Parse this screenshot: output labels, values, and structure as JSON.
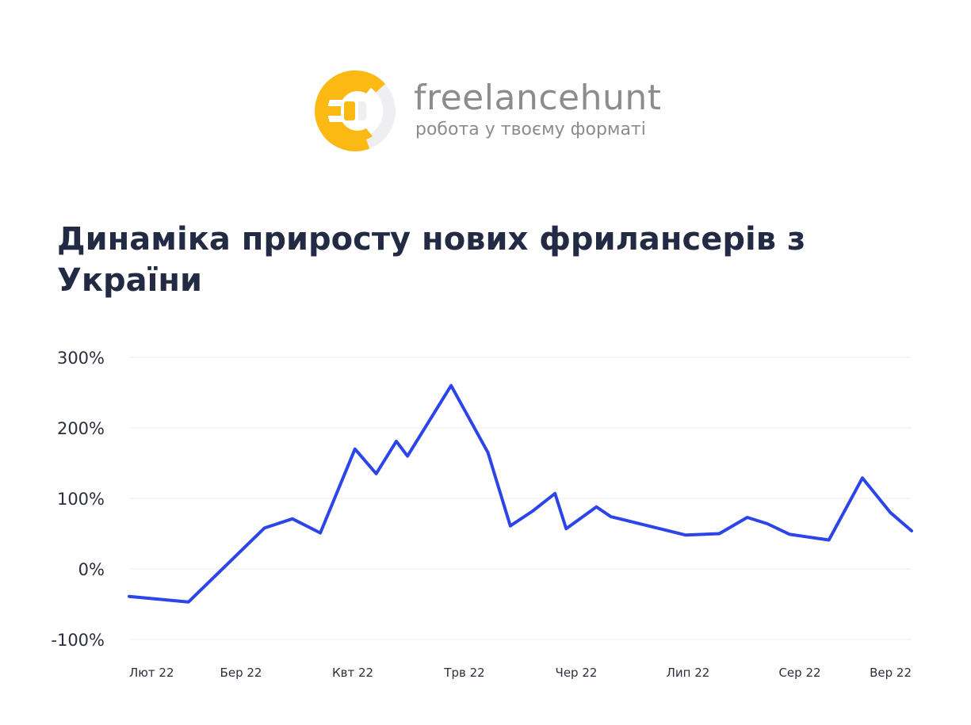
{
  "logo": {
    "name": "freelancehunt",
    "tagline": "робота у твоєму форматі",
    "colors": {
      "primary": "#FDB913",
      "secondary": "#EFEFF1",
      "text": "#8C8C8F"
    }
  },
  "chart_data": {
    "type": "line",
    "title": "Динаміка приросту нових фрилансерів з України",
    "xlabel": "",
    "ylabel": "",
    "ylim": [
      -100,
      300
    ],
    "yticks": [
      300,
      200,
      100,
      0,
      -100
    ],
    "ytick_labels": [
      "300%",
      "200%",
      "100%",
      "0%",
      "-100%"
    ],
    "xticks": [
      "Лют 22",
      "Бер 22",
      "Квт 22",
      "Трв 22",
      "Чер 22",
      "Лип 22",
      "Сер 22",
      "Вер 22"
    ],
    "x_range": [
      0,
      7
    ],
    "grid": true,
    "legend": "none",
    "series": [
      {
        "color": "#2B45E8",
        "points": [
          [
            0.0,
            -39
          ],
          [
            0.53,
            -47
          ],
          [
            1.21,
            58
          ],
          [
            1.46,
            71
          ],
          [
            1.71,
            51
          ],
          [
            2.02,
            170
          ],
          [
            2.21,
            135
          ],
          [
            2.39,
            181
          ],
          [
            2.49,
            160
          ],
          [
            2.88,
            260
          ],
          [
            3.21,
            165
          ],
          [
            3.41,
            61
          ],
          [
            3.61,
            82
          ],
          [
            3.81,
            107
          ],
          [
            3.91,
            57
          ],
          [
            4.18,
            88
          ],
          [
            4.31,
            74
          ],
          [
            4.98,
            48
          ],
          [
            5.28,
            50
          ],
          [
            5.53,
            73
          ],
          [
            5.71,
            64
          ],
          [
            5.91,
            49
          ],
          [
            6.26,
            41
          ],
          [
            6.56,
            129
          ],
          [
            6.81,
            80
          ],
          [
            7.0,
            54
          ]
        ]
      }
    ]
  }
}
